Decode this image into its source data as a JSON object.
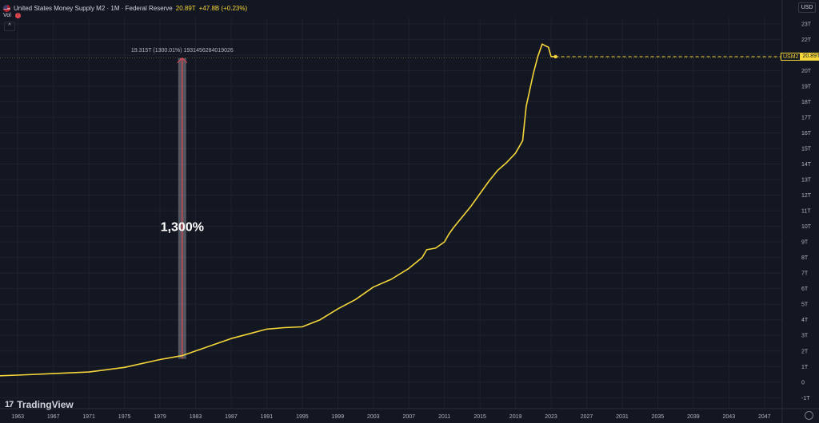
{
  "header": {
    "title": "United States Money Supply M2 · 1M · Federal Reserve",
    "last_value": "20.89T",
    "change": "+47.8B (+0.23%)"
  },
  "vol": {
    "label": "Vol"
  },
  "currency": "USD",
  "price_badge": {
    "symbol": "USM2",
    "value": "20.89T"
  },
  "brand": {
    "name": "TradingView",
    "mark": "17"
  },
  "colors": {
    "background": "#131722",
    "line": "#f5d63a",
    "measure": "#e0464f",
    "grid": "#1e2230"
  },
  "chart_data": {
    "type": "line",
    "title": "United States Money Supply M2 · 1M · Federal Reserve",
    "xlabel": "",
    "ylabel": "",
    "xlim": [
      1961,
      2049
    ],
    "ylim": [
      -1.7,
      23.4
    ],
    "x_ticks": [
      "1963",
      "1967",
      "1971",
      "1975",
      "1979",
      "1983",
      "1987",
      "1991",
      "1995",
      "1999",
      "2003",
      "2007",
      "2011",
      "2015",
      "2019",
      "2023",
      "2027",
      "2031",
      "2035",
      "2039",
      "2043",
      "2047"
    ],
    "y_ticks": [
      "-1T",
      "0",
      "1T",
      "2T",
      "3T",
      "4T",
      "5T",
      "6T",
      "7T",
      "8T",
      "9T",
      "10T",
      "11T",
      "12T",
      "13T",
      "14T",
      "15T",
      "16T",
      "17T",
      "18T",
      "19T",
      "20T",
      "21T",
      "22T",
      "23T"
    ],
    "series": [
      {
        "x": [
          1960.5,
          1963,
          1967,
          1971,
          1975,
          1979,
          1981.5,
          1983,
          1985,
          1987,
          1989,
          1991,
          1993,
          1995,
          1997,
          1999,
          2001,
          2003,
          2005,
          2007,
          2008.5,
          2009,
          2010,
          2011,
          2011.5,
          2012,
          2013,
          2014,
          2015,
          2016,
          2017,
          2018,
          2019,
          2019.8,
          2020.2,
          2020.5,
          2021,
          2021.5,
          2022,
          2022.3,
          2022.7,
          2023,
          2023.3,
          2023.5
        ],
        "y": [
          0.4,
          0.45,
          0.55,
          0.65,
          0.95,
          1.45,
          1.7,
          2.0,
          2.4,
          2.8,
          3.1,
          3.4,
          3.5,
          3.55,
          4.0,
          4.7,
          5.3,
          6.1,
          6.6,
          7.3,
          8.0,
          8.5,
          8.6,
          9.0,
          9.5,
          9.9,
          10.6,
          11.3,
          12.1,
          12.9,
          13.6,
          14.1,
          14.7,
          15.5,
          17.7,
          18.5,
          19.8,
          20.9,
          21.7,
          21.6,
          21.5,
          20.9,
          20.9,
          20.89
        ]
      }
    ],
    "last_value": 20.89,
    "measure": {
      "x": 1981.5,
      "y_start": 1.5,
      "y_end": 20.8,
      "label": "19.315T (1300.01%) 1931456284019026",
      "text": "1,300%"
    }
  }
}
